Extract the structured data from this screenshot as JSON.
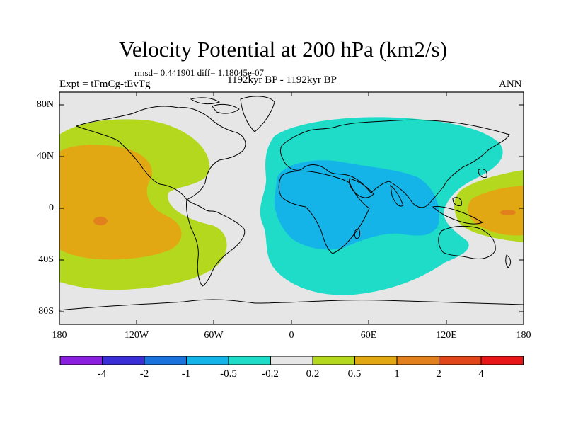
{
  "title": "Velocity Potential at 200 hPa (km2/s)",
  "stats": "rmsd= 0.441901 diff= 1.18045e-07",
  "period": "1192kyr BP - 1192kyr BP",
  "experiment": "Expt = tFmCg-tEvTg",
  "season": "ANN",
  "lat_labels": [
    "80N",
    "40N",
    "0",
    "40S",
    "80S"
  ],
  "lon_labels": [
    "180",
    "120W",
    "60W",
    "0",
    "60E",
    "120E",
    "180"
  ],
  "colorbar": {
    "labels": [
      "-4",
      "-2",
      "-1",
      "-0.5",
      "-0.2",
      "0.2",
      "0.5",
      "1",
      "2",
      "4"
    ],
    "colors": [
      "#8a1fe0",
      "#3a2fd6",
      "#1a72dc",
      "#15b4e8",
      "#1edcc8",
      "#e6e6e6",
      "#b4d81e",
      "#e2a814",
      "#e2801e",
      "#e0461a",
      "#e81616"
    ]
  },
  "map_colors": {
    "background": "#e6e6e6",
    "coast": "#000000"
  }
}
